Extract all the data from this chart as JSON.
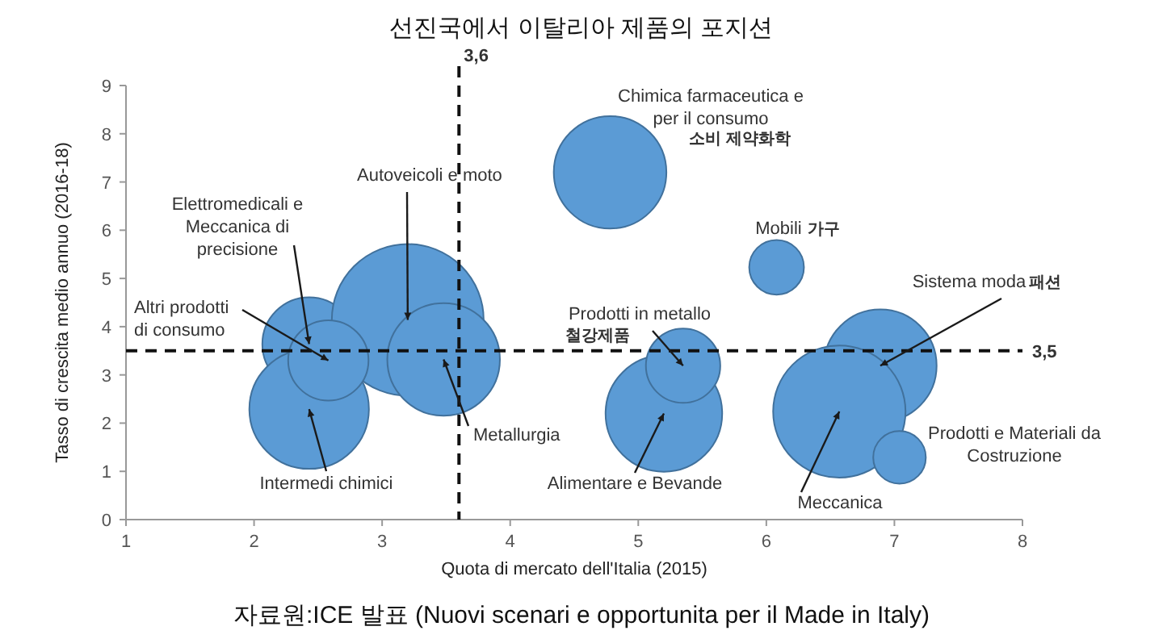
{
  "chart_data": {
    "type": "bubble",
    "title": "선진국에서 이탈리아 제품의 포지션",
    "xlabel": "Quota di mercato dell'Italia (2015)",
    "ylabel": "Tasso di crescita medio annuo (2016-18)",
    "x": [
      2.43,
      3.2,
      2.43,
      2.58,
      3.48,
      4.78,
      6.08,
      5.2,
      5.35,
      6.89,
      6.57,
      7.04
    ],
    "values": [
      3.64,
      4.14,
      2.29,
      3.3,
      3.32,
      7.2,
      5.23,
      2.2,
      3.19,
      3.19,
      2.24,
      1.29
    ],
    "sizes": [
      0.38,
      1,
      0.62,
      0.28,
      0.55,
      0.55,
      0.13,
      0.59,
      0.24,
      0.55,
      0.76,
      0.12
    ],
    "color": "#5b9bd5",
    "marker": "circle",
    "xlim": [
      1,
      8
    ],
    "ylim": [
      0,
      9
    ],
    "xticks": [
      1,
      2,
      3,
      4,
      5,
      6,
      7,
      8
    ],
    "yticks": [
      0,
      1,
      2,
      3,
      4,
      5,
      6,
      7,
      8,
      9
    ],
    "ref_lines": [
      {
        "axis": "x",
        "value": 3.6,
        "label": "3,6",
        "line_style": "dashed"
      },
      {
        "axis": "y",
        "value": 3.5,
        "label": "3,5",
        "line_style": "dashed"
      }
    ],
    "annotations": [
      "Chimica farmaceutica e per il consumo",
      "소비 제약화학",
      "Mobili",
      "가구",
      {
        "text": "Prodotti in metallo",
        "x": 5.35,
        "y": 3.19
      },
      "철강제품",
      {
        "text": "Alimentare e Bevande",
        "x": 5.2,
        "y": 2.2
      },
      {
        "text": "Meccanica",
        "x": 6.57,
        "y": 2.24
      },
      {
        "text": "Sistema moda",
        "x": 6.89,
        "y": 3.19
      },
      "패션",
      "Prodotti e Materiali da Costruzione",
      {
        "text": "Autoveicoli e moto",
        "x": 3.2,
        "y": 4.14
      },
      {
        "text": "Elettromedicali e Meccanica di precisione",
        "x": 2.43,
        "y": 3.64
      },
      {
        "text": "Altri prodotti di consumo",
        "x": 2.58,
        "y": 3.3
      },
      {
        "text": "Intermedi chimici",
        "x": 2.43,
        "y": 2.29
      },
      {
        "text": "Metallurgia",
        "x": 3.48,
        "y": 3.32
      },
      "자료원:ICE 발표 (Nuovi scenari e opportunita per il Made in Italy)"
    ]
  }
}
